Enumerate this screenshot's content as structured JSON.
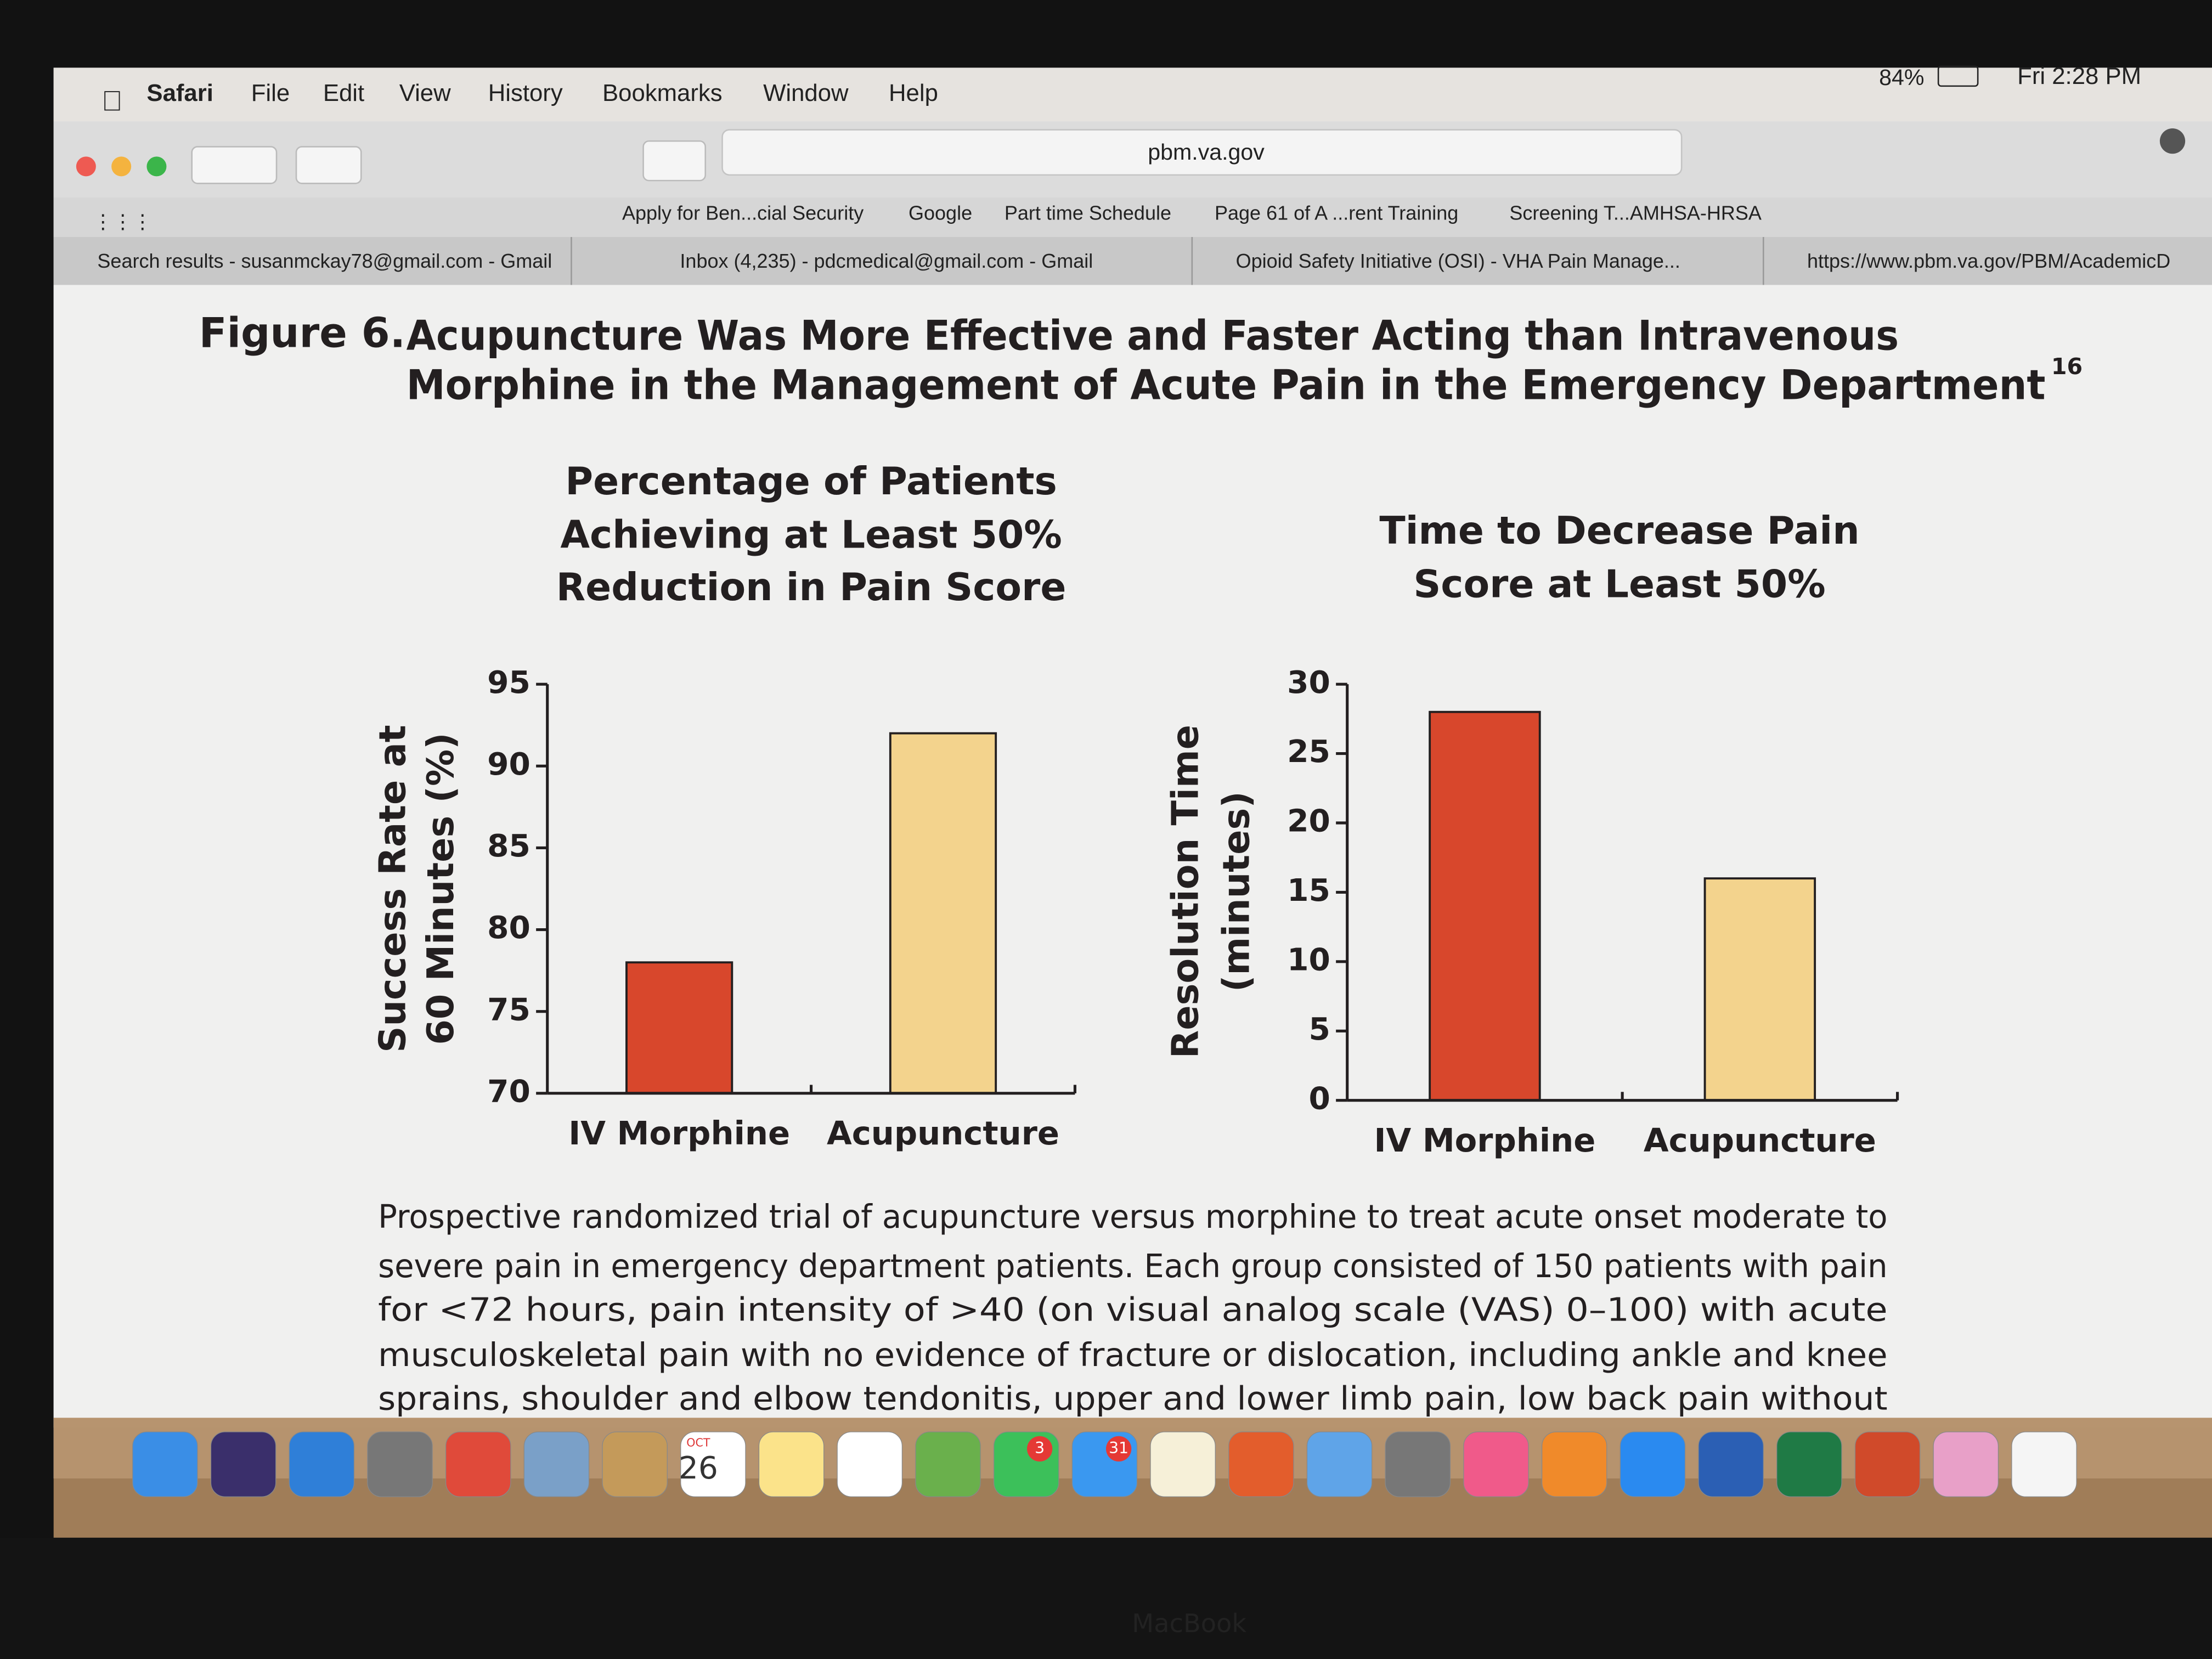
{
  "menu_bar": {
    "app": "Safari",
    "items": [
      "File",
      "Edit",
      "View",
      "History",
      "Bookmarks",
      "Window",
      "Help"
    ],
    "battery": "84%",
    "clock": "Fri 2:28 PM"
  },
  "address_bar": {
    "url": "pbm.va.gov"
  },
  "bookmarks": [
    "Apply for Ben...cial Security",
    "Google",
    "Part time Schedule",
    "Page 61 of A ...rent Training",
    "Screening T...AMHSA-HRSA"
  ],
  "tabs": [
    "Search results - susanmckay78@gmail.com - Gmail",
    "Inbox (4,235) - pdcmedical@gmail.com - Gmail",
    "Opioid Safety Initiative (OSI) - VHA Pain Manage...",
    "https://www.pbm.va.gov/PBM/AcademicD"
  ],
  "figure": {
    "label": "Figure 6.",
    "title_lines": [
      "Acupuncture Was More Effective and Faster Acting than Intravenous",
      "Morphine in the Management of Acute Pain in the Emergency Department"
    ],
    "footnote": "16",
    "caption_lines": [
      "Prospective randomized trial of acupuncture versus morphine to treat acute onset moderate to",
      "severe pain in emergency department patients. Each group consisted of 150 patients with pain",
      "for <72 hours, pain intensity of >40 (on visual analog scale (VAS) 0–100) with acute",
      "musculoskeletal pain with no evidence of fracture or dislocation, including ankle and knee",
      "sprains, shoulder and elbow tendonitis, upper and lower limb pain, low back pain without"
    ]
  },
  "chart_data": [
    {
      "type": "bar",
      "title_lines": [
        "Percentage of Patients",
        "Achieving at Least 50%",
        "Reduction in Pain Score"
      ],
      "ylabel_lines": [
        "Success Rate at",
        "60 Minutes (%)"
      ],
      "categories": [
        "IV Morphine",
        "Acupuncture"
      ],
      "values": [
        78,
        92
      ],
      "colors": [
        "#d8472c",
        "#f3d38d"
      ],
      "ylim": [
        70,
        95
      ],
      "yticks": [
        70,
        75,
        80,
        85,
        90,
        95
      ]
    },
    {
      "type": "bar",
      "title_lines": [
        "Time to Decrease Pain",
        "Score at Least 50%"
      ],
      "ylabel_lines": [
        "Resolution Time",
        "(minutes)"
      ],
      "categories": [
        "IV Morphine",
        "Acupuncture"
      ],
      "values": [
        28,
        16
      ],
      "colors": [
        "#d8472c",
        "#f3d38d"
      ],
      "ylim": [
        0,
        30
      ],
      "yticks": [
        0,
        5,
        10,
        15,
        20,
        25,
        30
      ]
    }
  ],
  "dock": {
    "calendar_month": "OCT",
    "calendar_day": "26",
    "badges": [
      "3",
      "31"
    ]
  },
  "bezel_label": "MacBook"
}
